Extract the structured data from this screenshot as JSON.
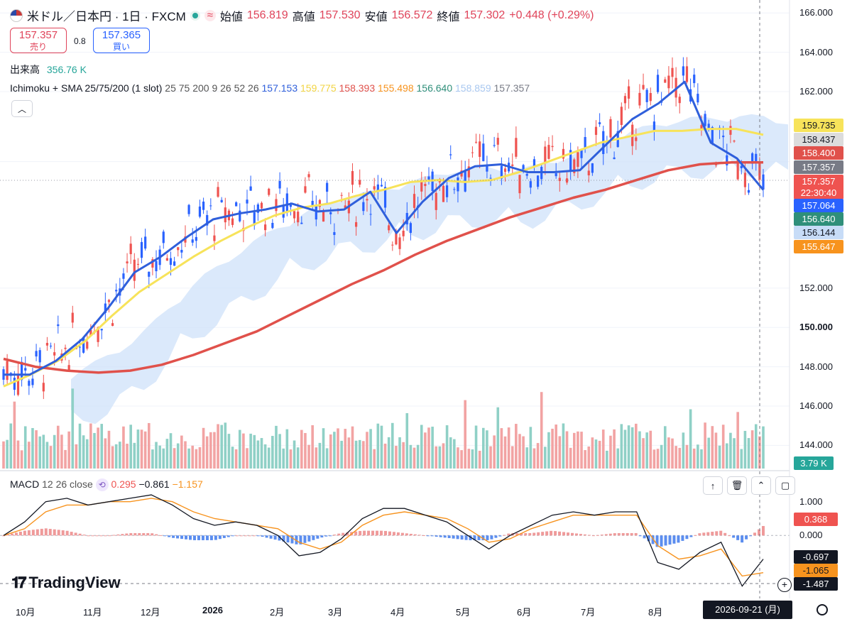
{
  "header": {
    "symbol": "米ドル／日本円 · 1日 · FXCM",
    "open_label": "始値",
    "open": "156.819",
    "high_label": "高値",
    "high": "157.530",
    "low_label": "安値",
    "low": "156.572",
    "close_label": "終値",
    "close": "157.302",
    "change": "+0.448 (+0.29%)"
  },
  "quote": {
    "sell_price": "157.357",
    "sell_label": "売り",
    "spread": "0.8",
    "buy_price": "157.365",
    "buy_label": "買い"
  },
  "volume_legend": {
    "label": "出来高",
    "value": "356.76 K"
  },
  "indicator_legend": {
    "name": "Ichimoku + SMA 25/75/200 (1 slot)",
    "params": "25 75 200 9 26 52 26",
    "v1": "157.153",
    "v2": "159.775",
    "v3": "158.393",
    "v4": "155.498",
    "v5": "156.640",
    "v6": "158.859",
    "v7": "157.357"
  },
  "macd_legend": {
    "name": "MACD",
    "params": "12 26 close",
    "hist": "0.295",
    "macd": "−0.861",
    "signal": "−1.157"
  },
  "branding": {
    "logo_text": "TradingView"
  },
  "cursor_date": "2026-09-21 (月)",
  "colors": {
    "up": "#ef5350",
    "down": "#2962ff",
    "sma25": "#2f5fdb",
    "sma75": "#f7e35a",
    "sma200": "#e0514b",
    "cloud_up": "#cfe2fa",
    "cloud_down": "#cfcfcf",
    "vol_up": "#f2a3a3",
    "vol_down": "#8fd0c6"
  },
  "chart_data": {
    "type": "line",
    "title": "米ドル／日本円 · 1日 · FXCM",
    "y_axis_ticks": [
      "166.000",
      "164.000",
      "162.000",
      "158.437",
      "152.000",
      "150.000",
      "148.000",
      "146.000",
      "144.000"
    ],
    "ylim": [
      143.0,
      166.3
    ],
    "x_axis_labels": [
      "10月",
      "11月",
      "12月",
      "2026",
      "2月",
      "3月",
      "4月",
      "5月",
      "6月",
      "7月",
      "8月"
    ],
    "price_tags": [
      {
        "value": "159.735",
        "bg": "#f7e35a",
        "fg": "#131722"
      },
      {
        "value": "158.437",
        "bg": "#dcdcdc",
        "fg": "#131722"
      },
      {
        "value": "158.400",
        "bg": "#e0514b",
        "fg": "#ffffff"
      },
      {
        "value": "157.357",
        "bg": "#787b86",
        "fg": "#ffffff"
      },
      {
        "value": "157.357",
        "bg": "#ef5350",
        "fg": "#ffffff"
      },
      {
        "value": "22:30:40",
        "bg": "#ef5350",
        "fg": "#ffffff"
      },
      {
        "value": "157.064",
        "bg": "#2962ff",
        "fg": "#ffffff"
      },
      {
        "value": "156.640",
        "bg": "#2f8f7a",
        "fg": "#ffffff"
      },
      {
        "value": "156.144",
        "bg": "#c7dcf7",
        "fg": "#131722"
      },
      {
        "value": "155.647",
        "bg": "#f7931e",
        "fg": "#ffffff"
      }
    ],
    "volume_tag": "3.79 K",
    "series": [
      {
        "name": "SMA 25",
        "values": [
          147.6,
          147.6,
          148.3,
          149.4,
          151.0,
          152.8,
          153.6,
          154.6,
          155.5,
          155.8,
          156.0,
          156.3,
          155.9,
          156.0,
          156.9,
          154.8,
          156.4,
          157.6,
          158.2,
          158.3,
          157.9,
          157.9,
          158.0,
          159.3,
          160.6,
          161.4,
          162.5,
          159.4,
          158.6,
          157.0
        ]
      },
      {
        "name": "SMA 75",
        "values": [
          147.0,
          147.6,
          148.3,
          149.3,
          150.6,
          151.8,
          152.7,
          153.6,
          154.4,
          155.1,
          155.7,
          156.1,
          156.3,
          156.7,
          157.0,
          157.4,
          157.5,
          157.4,
          157.5,
          157.9,
          158.4,
          158.9,
          159.4,
          159.7,
          160.0,
          160.0,
          160.1,
          160.1,
          159.8
        ]
      },
      {
        "name": "SMA 200",
        "values": [
          148.4,
          148.0,
          147.8,
          147.7,
          147.8,
          148.1,
          148.6,
          149.2,
          149.8,
          150.6,
          151.4,
          152.2,
          152.9,
          153.7,
          154.4,
          155.0,
          155.6,
          156.1,
          156.6,
          157.0,
          157.5,
          158.0,
          158.3,
          158.4,
          158.4
        ]
      }
    ],
    "macd": {
      "ylim": [
        -1.8,
        1.35
      ],
      "y_ticks": [
        "1.000",
        "0.000"
      ],
      "tags": [
        {
          "value": "0.368",
          "bg": "#ef5350",
          "fg": "#ffffff"
        },
        {
          "value": "-0.697",
          "bg": "#131722",
          "fg": "#ffffff"
        },
        {
          "value": "-1.065",
          "bg": "#f7931e",
          "fg": "#131722"
        },
        {
          "value": "-1.487",
          "bg": "#131722",
          "fg": "#ffffff"
        }
      ],
      "macd_line": [
        0.0,
        0.4,
        1.0,
        1.1,
        0.9,
        1.0,
        1.1,
        1.2,
        0.9,
        0.5,
        0.3,
        0.4,
        0.3,
        0.0,
        -0.6,
        -0.5,
        -0.1,
        0.5,
        0.8,
        0.8,
        0.6,
        0.4,
        0.0,
        -0.4,
        0.0,
        0.3,
        0.6,
        0.7,
        0.6,
        0.7,
        0.7,
        -0.8,
        -1.0,
        -0.5,
        -0.2,
        -1.5,
        -0.7
      ],
      "signal_line": [
        0.0,
        0.2,
        0.7,
        0.9,
        0.9,
        1.0,
        1.0,
        1.1,
        1.0,
        0.7,
        0.5,
        0.4,
        0.3,
        0.2,
        -0.2,
        -0.4,
        -0.2,
        0.3,
        0.6,
        0.7,
        0.6,
        0.5,
        0.2,
        -0.2,
        -0.1,
        0.2,
        0.4,
        0.6,
        0.6,
        0.6,
        0.6,
        -0.3,
        -0.7,
        -0.6,
        -0.4,
        -1.2,
        -1.1
      ]
    }
  }
}
